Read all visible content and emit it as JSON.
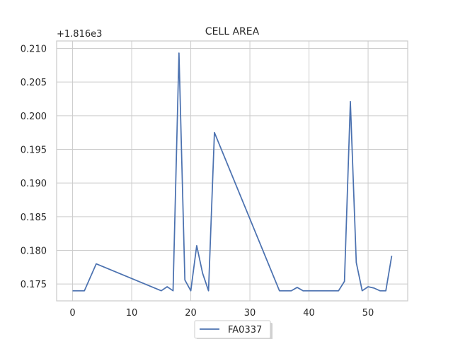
{
  "chart_data": {
    "type": "line",
    "title": "CELL AREA",
    "offset_label": "+1.816e3",
    "xlabel": "",
    "ylabel": "",
    "xlim": [
      -2.7,
      56.7
    ],
    "ylim": [
      0.1725,
      0.2111
    ],
    "grid": true,
    "legend_position": "bottom-center",
    "x_ticks": [
      0,
      10,
      20,
      30,
      40,
      50
    ],
    "x_tick_labels": [
      "0",
      "10",
      "20",
      "30",
      "40",
      "50"
    ],
    "y_ticks": [
      0.175,
      0.18,
      0.185,
      0.19,
      0.195,
      0.2,
      0.205,
      0.21
    ],
    "y_tick_labels": [
      "0.175",
      "0.180",
      "0.185",
      "0.190",
      "0.195",
      "0.200",
      "0.205",
      "0.210"
    ],
    "series": [
      {
        "name": "FA0337",
        "color": "#4c72b0",
        "x": [
          0,
          2,
          4,
          15,
          16,
          17,
          18,
          19,
          20,
          21,
          22,
          23,
          24,
          35,
          37,
          38,
          39,
          45,
          46,
          47,
          48,
          49,
          50,
          51,
          52,
          53,
          54
        ],
        "y": [
          0.174,
          0.174,
          0.178,
          0.174,
          0.1746,
          0.174,
          0.2093,
          0.1756,
          0.174,
          0.1807,
          0.1766,
          0.174,
          0.1975,
          0.174,
          0.174,
          0.1745,
          0.174,
          0.174,
          0.1754,
          0.2021,
          0.1782,
          0.174,
          0.1746,
          0.1744,
          0.174,
          0.174,
          0.1792
        ]
      }
    ]
  }
}
